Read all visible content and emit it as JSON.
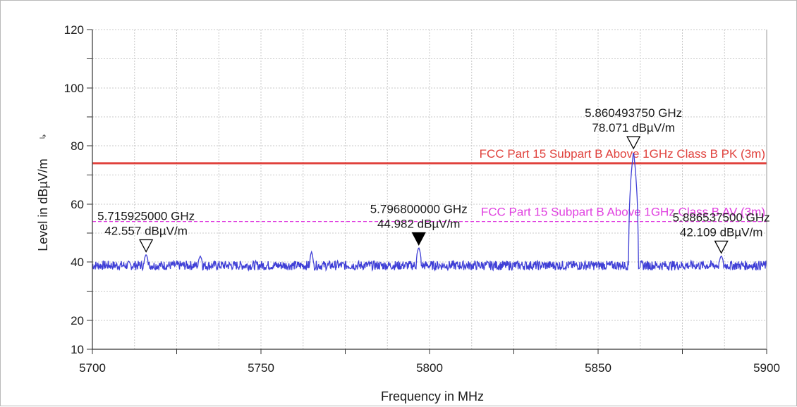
{
  "chart_data": {
    "type": "line",
    "xlabel": "Frequency in MHz",
    "ylabel": "Level in dBµV/m",
    "ylabel_icon": "ascending-arrow-icon",
    "xlim": [
      5700,
      5900
    ],
    "ylim": [
      10,
      120
    ],
    "x_ticks": [
      5700,
      5750,
      5800,
      5850,
      5900
    ],
    "y_ticks": [
      10,
      20,
      40,
      60,
      80,
      100,
      120
    ],
    "grid": true,
    "colors": {
      "trace": "#3f3fd6",
      "limit_pk": "#e0413c",
      "limit_av": "#e040e0",
      "grid": "#c8c8c8"
    },
    "limits": [
      {
        "name": "FCC Part 15 Subpart B Above 1GHz Class B PK (3m)",
        "value": 74,
        "style": "solid",
        "color": "#e0413c"
      },
      {
        "name": "FCC Part 15 Subpart B Above 1GHz Class B AV (3m)",
        "value": 54,
        "style": "dashed",
        "color": "#e040e0"
      }
    ],
    "series": [
      {
        "baseline": 38.8,
        "peaks": [
          {
            "x": 5715.925,
            "y": 42.6,
            "width": 0.6
          },
          {
            "x": 5732.0,
            "y": 42.0,
            "width": 0.6
          },
          {
            "x": 5765.0,
            "y": 43.5,
            "width": 0.5
          },
          {
            "x": 5796.8,
            "y": 45.0,
            "width": 0.7
          },
          {
            "x": 5860.49375,
            "y": 78.1,
            "width": 1.4
          },
          {
            "x": 5886.5375,
            "y": 42.1,
            "width": 0.6
          }
        ]
      }
    ],
    "markers": [
      {
        "freq": "5.715925000 GHz",
        "level": "42.557 dBµV/m",
        "x": 5715.925,
        "y": 42.557,
        "filled": false
      },
      {
        "freq": "5.796800000 GHz",
        "level": "44.982 dBµV/m",
        "x": 5796.8,
        "y": 44.982,
        "filled": true
      },
      {
        "freq": "5.860493750 GHz",
        "level": "78.071 dBµV/m",
        "x": 5860.49375,
        "y": 78.071,
        "filled": false
      },
      {
        "freq": "5.886537500 GHz",
        "level": "42.109 dBµV/m",
        "x": 5886.5375,
        "y": 42.109,
        "filled": false
      }
    ]
  }
}
